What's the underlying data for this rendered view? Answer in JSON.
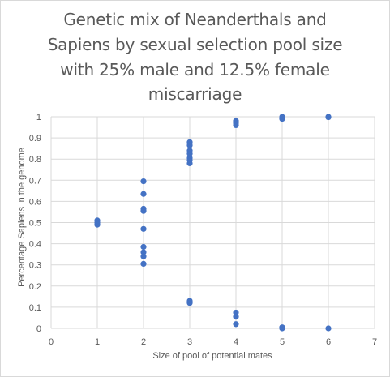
{
  "chart_data": {
    "type": "scatter",
    "title_lines": [
      "Genetic mix of Neanderthals and",
      "Sapiens by sexual selection pool size",
      "with 25% male and 12.5% female",
      "miscarriage"
    ],
    "xlabel": "Size of pool of potential mates",
    "ylabel": "Percentage Sapiens in the genome",
    "xlim": [
      0,
      7
    ],
    "ylim": [
      0,
      1
    ],
    "x_ticks": [
      "0",
      "1",
      "2",
      "3",
      "4",
      "5",
      "6",
      "7"
    ],
    "y_ticks": [
      "0",
      "0.1",
      "0.2",
      "0.3",
      "0.4",
      "0.5",
      "0.6",
      "0.7",
      "0.8",
      "0.9",
      "1"
    ],
    "grid": true,
    "legend": "none",
    "marker_color": "#4472c4",
    "series": [
      {
        "points": [
          {
            "x": 1,
            "y": 0.51
          },
          {
            "x": 1,
            "y": 0.5
          },
          {
            "x": 1,
            "y": 0.49
          },
          {
            "x": 2,
            "y": 0.695
          },
          {
            "x": 2,
            "y": 0.635
          },
          {
            "x": 2,
            "y": 0.565
          },
          {
            "x": 2,
            "y": 0.555
          },
          {
            "x": 2,
            "y": 0.47
          },
          {
            "x": 2,
            "y": 0.385
          },
          {
            "x": 2,
            "y": 0.36
          },
          {
            "x": 2,
            "y": 0.34
          },
          {
            "x": 2,
            "y": 0.305
          },
          {
            "x": 3,
            "y": 0.88
          },
          {
            "x": 3,
            "y": 0.865
          },
          {
            "x": 3,
            "y": 0.84
          },
          {
            "x": 3,
            "y": 0.825
          },
          {
            "x": 3,
            "y": 0.805
          },
          {
            "x": 3,
            "y": 0.795
          },
          {
            "x": 3,
            "y": 0.78
          },
          {
            "x": 3,
            "y": 0.13
          },
          {
            "x": 3,
            "y": 0.12
          },
          {
            "x": 4,
            "y": 0.98
          },
          {
            "x": 4,
            "y": 0.97
          },
          {
            "x": 4,
            "y": 0.96
          },
          {
            "x": 4,
            "y": 0.075
          },
          {
            "x": 4,
            "y": 0.055
          },
          {
            "x": 4,
            "y": 0.02
          },
          {
            "x": 5,
            "y": 1.0
          },
          {
            "x": 5,
            "y": 0.995
          },
          {
            "x": 5,
            "y": 0.99
          },
          {
            "x": 5,
            "y": 0.005
          },
          {
            "x": 5,
            "y": 0.0
          },
          {
            "x": 6,
            "y": 1.0
          },
          {
            "x": 6,
            "y": 0.998
          },
          {
            "x": 6,
            "y": 0.0
          }
        ]
      }
    ]
  }
}
